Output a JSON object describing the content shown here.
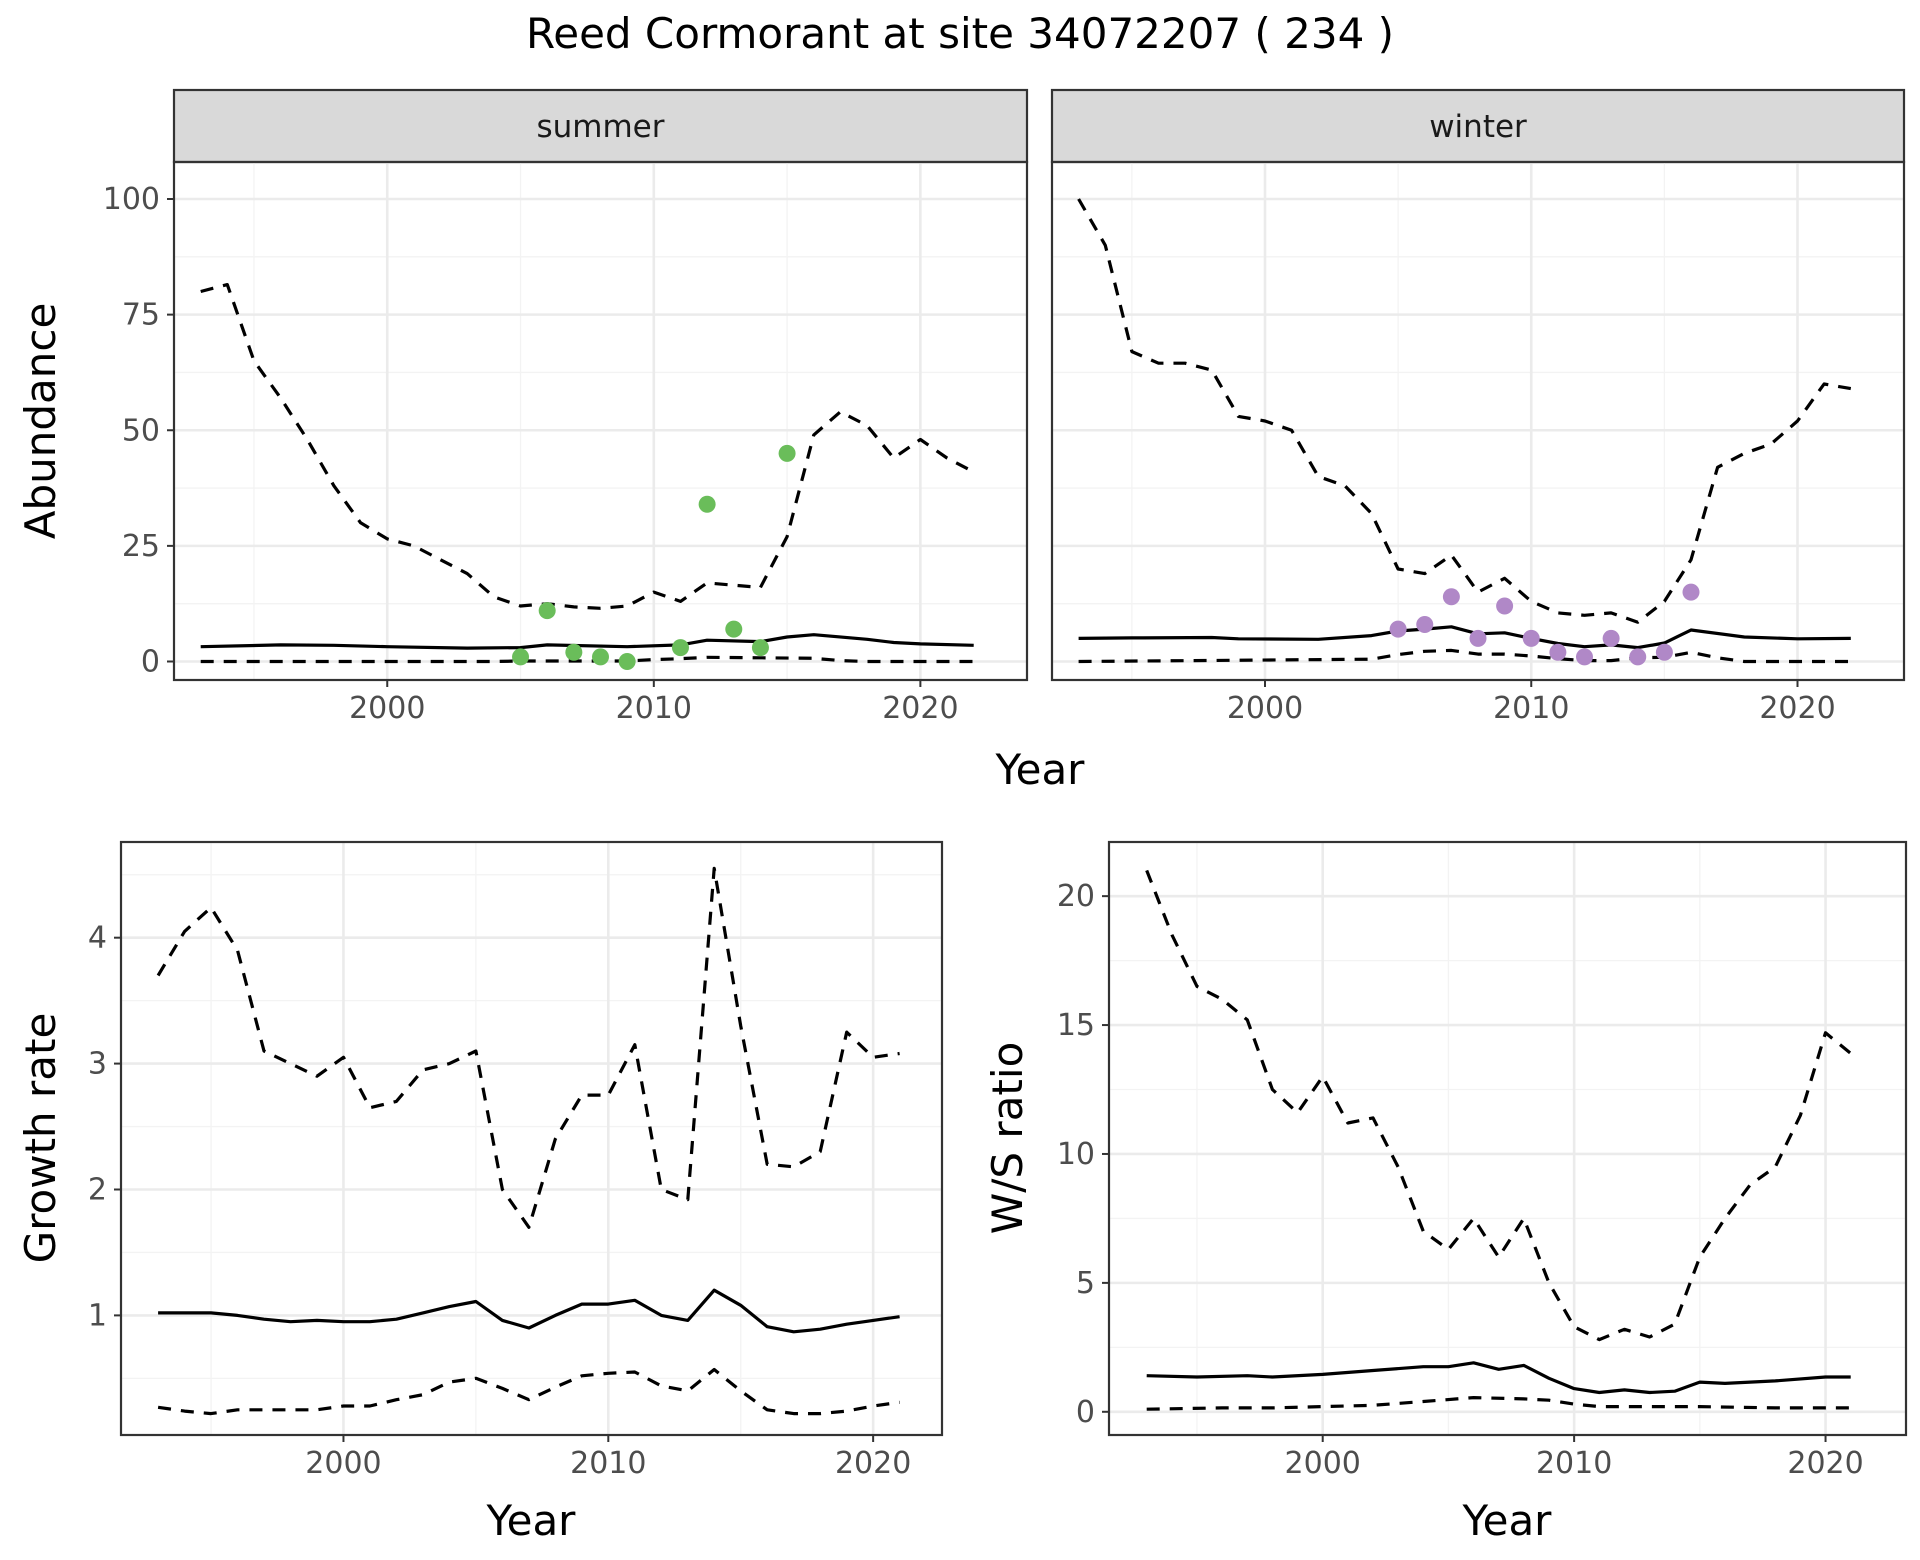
{
  "title": "Reed Cormorant at site 34072207 ( 234 )",
  "colors": {
    "summer_points": "#6abd5a",
    "winter_points": "#b088c7",
    "lines": "#000000",
    "grid_major": "#ebebeb",
    "grid_minor": "#f3f3f3",
    "strip_fill": "#d9d9d9",
    "panel_border": "#333333"
  },
  "chart_data": [
    {
      "type": "line",
      "facets": [
        "summer",
        "winter"
      ],
      "xlabel": "Year",
      "ylabel": "Abundance",
      "xlim": [
        1992,
        2024
      ],
      "ylim": [
        -4,
        108
      ],
      "x_ticks": [
        2000,
        2010,
        2020
      ],
      "x_tick_labels": [
        "2000",
        "2010",
        "2020"
      ],
      "y_ticks": [
        0,
        25,
        50,
        75,
        100
      ],
      "y_tick_labels": [
        "0",
        "25",
        "50",
        "75",
        "100"
      ],
      "grid": true,
      "panels": [
        {
          "facet": "summer",
          "series": [
            {
              "style": "solid",
              "x": [
                1993,
                1996,
                1998,
                2000,
                2003,
                2005,
                2006,
                2009,
                2011,
                2012,
                2014,
                2015,
                2016,
                2018,
                2019,
                2020,
                2022
              ],
              "y": [
                3.2,
                3.6,
                3.5,
                3.2,
                2.9,
                3.0,
                3.6,
                3.2,
                3.6,
                4.6,
                4.3,
                5.3,
                5.8,
                4.8,
                4.1,
                3.8,
                3.5
              ]
            },
            {
              "style": "dashed",
              "x": [
                1993,
                1994,
                1995,
                1996,
                1997,
                1998,
                1999,
                2000,
                2001,
                2002,
                2003,
                2004,
                2005,
                2006,
                2007,
                2008,
                2009,
                2010,
                2011,
                2012,
                2013,
                2014,
                2015,
                2016,
                2017,
                2018,
                2019,
                2020,
                2021,
                2022
              ],
              "y": [
                80,
                81.5,
                65,
                57,
                48,
                38,
                30,
                26.5,
                25,
                22,
                19,
                14,
                12,
                12.5,
                11.8,
                11.5,
                12,
                15,
                13,
                17,
                16.5,
                16,
                27,
                49,
                54,
                51,
                44,
                48,
                44,
                41
              ]
            },
            {
              "style": "dashed",
              "x": [
                1993,
                2004,
                2005,
                2009,
                2010,
                2011,
                2012,
                2014,
                2016,
                2017,
                2018,
                2022
              ],
              "y": [
                0,
                0,
                0.1,
                0.1,
                0.4,
                0.6,
                0.9,
                0.8,
                0.7,
                0.2,
                0,
                0
              ]
            }
          ],
          "points": {
            "x": [
              2005,
              2006,
              2007,
              2008,
              2009,
              2011,
              2012,
              2013,
              2014,
              2015
            ],
            "y": [
              1,
              11,
              2,
              1,
              0,
              3,
              34,
              7,
              3,
              45
            ]
          }
        },
        {
          "facet": "winter",
          "series": [
            {
              "style": "solid",
              "x": [
                1993,
                1995,
                1998,
                1999,
                2002,
                2004,
                2005,
                2006,
                2007,
                2008,
                2009,
                2010,
                2011,
                2012,
                2013,
                2014,
                2015,
                2016,
                2018,
                2020,
                2022
              ],
              "y": [
                5.0,
                5.1,
                5.2,
                4.9,
                4.8,
                5.6,
                6.6,
                7.0,
                7.5,
                6.0,
                6.2,
                5.0,
                3.9,
                3.2,
                3.6,
                3.0,
                4.0,
                6.8,
                5.3,
                4.9,
                5.0
              ]
            },
            {
              "style": "dashed",
              "x": [
                1993,
                1994,
                1995,
                1996,
                1997,
                1998,
                1999,
                2000,
                2001,
                2002,
                2003,
                2004,
                2005,
                2006,
                2007,
                2008,
                2009,
                2010,
                2011,
                2012,
                2013,
                2014,
                2015,
                2016,
                2017,
                2018,
                2019,
                2020,
                2021,
                2022
              ],
              "y": [
                100,
                90,
                67,
                64.5,
                64.5,
                63,
                53,
                52,
                50,
                40,
                38,
                32,
                20,
                19,
                23,
                15,
                18,
                13,
                10.5,
                10,
                10.5,
                8.5,
                13,
                22,
                42,
                45,
                47,
                52,
                60,
                59
              ]
            },
            {
              "style": "dashed",
              "x": [
                1993,
                2004,
                2005,
                2006,
                2007,
                2008,
                2009,
                2010,
                2011,
                2012,
                2013,
                2014,
                2015,
                2016,
                2017,
                2018,
                2022
              ],
              "y": [
                0,
                0.5,
                1.5,
                2.2,
                2.4,
                1.6,
                1.6,
                1.2,
                0.6,
                0.2,
                0.2,
                0.8,
                0.9,
                2.0,
                0.8,
                0,
                0
              ]
            }
          ],
          "points": {
            "x": [
              2005,
              2006,
              2007,
              2008,
              2009,
              2010,
              2011,
              2012,
              2013,
              2014,
              2015,
              2016
            ],
            "y": [
              7,
              8,
              14,
              5,
              12,
              5,
              2,
              1,
              5,
              1,
              2,
              15
            ]
          }
        }
      ]
    },
    {
      "type": "line",
      "xlabel": "Year",
      "ylabel": "Growth rate",
      "xlim": [
        1991.6,
        2022.6
      ],
      "ylim": [
        0.05,
        4.76
      ],
      "x_ticks": [
        2000,
        2010,
        2020
      ],
      "x_tick_labels": [
        "2000",
        "2010",
        "2020"
      ],
      "y_ticks": [
        1,
        2,
        3,
        4
      ],
      "y_tick_labels": [
        "1",
        "2",
        "3",
        "4"
      ],
      "grid": true,
      "series": [
        {
          "style": "solid",
          "x": [
            1993,
            1994,
            1995,
            1996,
            1997,
            1998,
            1999,
            2000,
            2001,
            2002,
            2003,
            2004,
            2005,
            2006,
            2007,
            2008,
            2009,
            2010,
            2011,
            2012,
            2013,
            2014,
            2015,
            2016,
            2017,
            2018,
            2019,
            2020,
            2021
          ],
          "y": [
            1.02,
            1.02,
            1.02,
            1.0,
            0.97,
            0.95,
            0.96,
            0.95,
            0.95,
            0.97,
            1.02,
            1.07,
            1.11,
            0.96,
            0.9,
            1.0,
            1.09,
            1.09,
            1.12,
            1.0,
            0.96,
            1.2,
            1.08,
            0.91,
            0.87,
            0.89,
            0.93,
            0.96,
            0.99
          ]
        },
        {
          "style": "dashed",
          "x": [
            1993,
            1994,
            1995,
            1996,
            1997,
            1998,
            1999,
            2000,
            2001,
            2002,
            2003,
            2004,
            2005,
            2006,
            2007,
            2008,
            2009,
            2010,
            2011,
            2012,
            2013,
            2014,
            2015,
            2016,
            2017,
            2018,
            2019,
            2020,
            2021
          ],
          "y": [
            3.7,
            4.05,
            4.24,
            3.9,
            3.1,
            3.0,
            2.9,
            3.05,
            2.65,
            2.7,
            2.95,
            3.0,
            3.1,
            2.0,
            1.7,
            2.4,
            2.75,
            2.75,
            3.15,
            2.0,
            1.92,
            4.55,
            3.3,
            2.2,
            2.18,
            2.3,
            3.25,
            3.05,
            3.08
          ]
        },
        {
          "style": "dashed",
          "x": [
            1993,
            1994,
            1995,
            1996,
            1997,
            1998,
            1999,
            2000,
            2001,
            2002,
            2003,
            2004,
            2005,
            2006,
            2007,
            2008,
            2009,
            2010,
            2011,
            2012,
            2013,
            2014,
            2015,
            2016,
            2017,
            2018,
            2019,
            2020,
            2021
          ],
          "y": [
            0.27,
            0.24,
            0.22,
            0.25,
            0.25,
            0.25,
            0.25,
            0.28,
            0.28,
            0.33,
            0.37,
            0.47,
            0.5,
            0.42,
            0.33,
            0.43,
            0.52,
            0.54,
            0.55,
            0.44,
            0.4,
            0.57,
            0.4,
            0.25,
            0.22,
            0.22,
            0.24,
            0.28,
            0.31
          ]
        }
      ]
    },
    {
      "type": "line",
      "xlabel": "Year",
      "ylabel": "W/S ratio",
      "xlim": [
        1991.5,
        2023.2
      ],
      "ylim": [
        -0.9,
        22.1
      ],
      "x_ticks": [
        2000,
        2010,
        2020
      ],
      "x_tick_labels": [
        "2000",
        "2010",
        "2020"
      ],
      "y_ticks": [
        0,
        5,
        10,
        15,
        20
      ],
      "y_tick_labels": [
        "0",
        "5",
        "10",
        "15",
        "20"
      ],
      "grid": true,
      "series": [
        {
          "style": "solid",
          "x": [
            1993,
            1995,
            1997,
            1998,
            2000,
            2002,
            2004,
            2005,
            2006,
            2007,
            2008,
            2009,
            2010,
            2011,
            2012,
            2013,
            2014,
            2015,
            2016,
            2018,
            2020,
            2021
          ],
          "y": [
            1.4,
            1.35,
            1.4,
            1.35,
            1.45,
            1.6,
            1.75,
            1.75,
            1.9,
            1.65,
            1.8,
            1.3,
            0.9,
            0.75,
            0.85,
            0.75,
            0.8,
            1.15,
            1.1,
            1.2,
            1.35,
            1.35
          ]
        },
        {
          "style": "dashed",
          "x": [
            1993,
            1994,
            1995,
            1996,
            1997,
            1998,
            1999,
            2000,
            2001,
            2002,
            2003,
            2004,
            2005,
            2006,
            2007,
            2008,
            2009,
            2010,
            2011,
            2012,
            2013,
            2014,
            2015,
            2016,
            2017,
            2018,
            2019,
            2020,
            2021
          ],
          "y": [
            21,
            18.5,
            16.5,
            16,
            15.2,
            12.5,
            11.6,
            13,
            11.2,
            11.4,
            9.5,
            7,
            6.3,
            7.5,
            6,
            7.5,
            5,
            3.3,
            2.8,
            3.2,
            2.9,
            3.4,
            6,
            7.5,
            8.8,
            9.5,
            11.5,
            14.7,
            13.9
          ]
        },
        {
          "style": "dashed",
          "x": [
            1993,
            1996,
            1998,
            2000,
            2002,
            2004,
            2006,
            2008,
            2009,
            2010,
            2011,
            2013,
            2015,
            2018,
            2021
          ],
          "y": [
            0.1,
            0.15,
            0.15,
            0.2,
            0.25,
            0.4,
            0.55,
            0.5,
            0.45,
            0.3,
            0.2,
            0.2,
            0.2,
            0.15,
            0.15
          ]
        }
      ]
    }
  ]
}
